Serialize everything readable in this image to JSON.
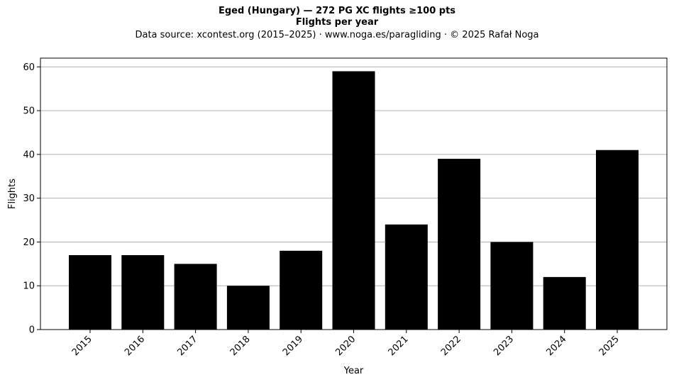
{
  "chart_data": {
    "type": "bar",
    "title": "Eged (Hungary)  —  272 PG XC flights ≥100 pts",
    "subtitle": "Flights per year",
    "source_note": "Data source: xcontest.org (2015–2025)  ·  www.noga.es/paragliding  ·  © 2025 Rafał Noga",
    "xlabel": "Year",
    "ylabel": "Flights",
    "categories": [
      "2015",
      "2016",
      "2017",
      "2018",
      "2019",
      "2020",
      "2021",
      "2022",
      "2023",
      "2024",
      "2025"
    ],
    "values": [
      17,
      17,
      15,
      10,
      18,
      59,
      24,
      39,
      20,
      12,
      41
    ],
    "ylim": [
      0,
      62
    ],
    "yticks": [
      0,
      10,
      20,
      30,
      40,
      50,
      60
    ],
    "grid": "horizontal",
    "bar_color": "#000000",
    "grid_color": "#b0b0b0"
  }
}
